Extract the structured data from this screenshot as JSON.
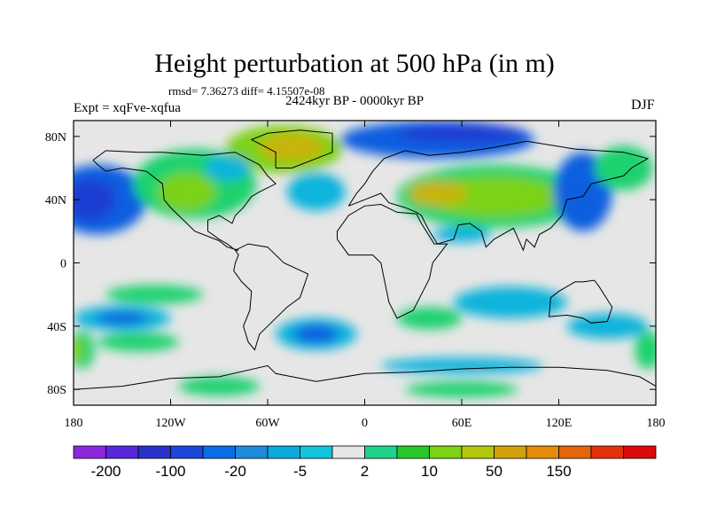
{
  "title": "Height perturbation at 500 hPa (in m)",
  "stats": "rmsd= 7.36273 diff= 4.15507e-08",
  "expt": "Expt = xqFve-xqfua",
  "period": "2424kyr BP - 0000kyr BP",
  "season": "DJF",
  "map": {
    "lon_range": [
      -180,
      180
    ],
    "lat_range": [
      -90,
      90
    ],
    "lon_ticks": [
      {
        "value": -180,
        "label": "180"
      },
      {
        "value": -120,
        "label": "120W"
      },
      {
        "value": -60,
        "label": "60W"
      },
      {
        "value": 0,
        "label": "0"
      },
      {
        "value": 60,
        "label": "60E"
      },
      {
        "value": 120,
        "label": "120E"
      },
      {
        "value": 180,
        "label": "180"
      }
    ],
    "lat_ticks": [
      {
        "value": 80,
        "label": "80N"
      },
      {
        "value": 40,
        "label": "40N"
      },
      {
        "value": 0,
        "label": "0"
      },
      {
        "value": -40,
        "label": "40S"
      },
      {
        "value": -80,
        "label": "80S"
      }
    ],
    "background_color": "#e6e6e6",
    "features": [
      {
        "name": "north-pacific-low",
        "lon": -165,
        "lat": 40,
        "rx": 30,
        "ry": 22,
        "color": "#0a5ee0"
      },
      {
        "name": "north-pacific-low-core",
        "lon": -170,
        "lat": 40,
        "rx": 16,
        "ry": 13,
        "color": "#1e3cd2"
      },
      {
        "name": "north-america-high",
        "lon": -105,
        "lat": 50,
        "rx": 38,
        "ry": 22,
        "color": "#1ed26e"
      },
      {
        "name": "north-america-high-core",
        "lon": -110,
        "lat": 45,
        "rx": 18,
        "ry": 12,
        "color": "#7cd214"
      },
      {
        "name": "greenland-high",
        "lon": -50,
        "lat": 72,
        "rx": 36,
        "ry": 15,
        "color": "#7cd214"
      },
      {
        "name": "greenland-high-core",
        "lon": -45,
        "lat": 73,
        "rx": 20,
        "ry": 9,
        "color": "#c8b40a"
      },
      {
        "name": "hudson-low",
        "lon": -85,
        "lat": 60,
        "rx": 14,
        "ry": 8,
        "color": "#10b4dc"
      },
      {
        "name": "atlantic-low",
        "lon": -30,
        "lat": 45,
        "rx": 18,
        "ry": 12,
        "color": "#10b4dc"
      },
      {
        "name": "arctic-low",
        "lon": 45,
        "lat": 78,
        "rx": 60,
        "ry": 12,
        "color": "#0a5ee0"
      },
      {
        "name": "arctic-low-core",
        "lon": 60,
        "lat": 82,
        "rx": 40,
        "ry": 6,
        "color": "#1e3cd2"
      },
      {
        "name": "eurasia-high",
        "lon": 80,
        "lat": 42,
        "rx": 60,
        "ry": 20,
        "color": "#1ed26e"
      },
      {
        "name": "eurasia-high-core",
        "lon": 80,
        "lat": 42,
        "rx": 42,
        "ry": 13,
        "color": "#7cd214"
      },
      {
        "name": "eurasia-high-peak",
        "lon": 45,
        "lat": 44,
        "rx": 18,
        "ry": 8,
        "color": "#c8b40a"
      },
      {
        "name": "east-asia-low",
        "lon": 135,
        "lat": 45,
        "rx": 18,
        "ry": 25,
        "color": "#0a5ee0"
      },
      {
        "name": "bering-high",
        "lon": 160,
        "lat": 60,
        "rx": 18,
        "ry": 14,
        "color": "#1ed26e"
      },
      {
        "name": "mideast-low",
        "lon": 60,
        "lat": 18,
        "rx": 18,
        "ry": 5,
        "color": "#10b4dc"
      },
      {
        "name": "south-pacific-low",
        "lon": -150,
        "lat": -35,
        "rx": 30,
        "ry": 8,
        "color": "#10b4dc"
      },
      {
        "name": "south-pacific-low-core",
        "lon": -150,
        "lat": -35,
        "rx": 16,
        "ry": 4,
        "color": "#0a5ee0"
      },
      {
        "name": "south-pacific-high",
        "lon": -130,
        "lat": -20,
        "rx": 30,
        "ry": 6,
        "color": "#1ed26e"
      },
      {
        "name": "south-pacific-high-2",
        "lon": -140,
        "lat": -50,
        "rx": 25,
        "ry": 6,
        "color": "#1ed26e"
      },
      {
        "name": "south-atlantic-low",
        "lon": -30,
        "lat": -45,
        "rx": 25,
        "ry": 10,
        "color": "#10b4dc"
      },
      {
        "name": "south-atlantic-low-core",
        "lon": -30,
        "lat": -45,
        "rx": 14,
        "ry": 6,
        "color": "#0a5ee0"
      },
      {
        "name": "south-indian-high",
        "lon": 40,
        "lat": -35,
        "rx": 20,
        "ry": 7,
        "color": "#1ed26e"
      },
      {
        "name": "indian-ocean-low",
        "lon": 90,
        "lat": -25,
        "rx": 35,
        "ry": 10,
        "color": "#10b4dc"
      },
      {
        "name": "australia-low",
        "lon": 150,
        "lat": -40,
        "rx": 25,
        "ry": 8,
        "color": "#10b4dc"
      },
      {
        "name": "southern-ocean-low",
        "lon": 60,
        "lat": -65,
        "rx": 50,
        "ry": 5,
        "color": "#10b4dc"
      },
      {
        "name": "antarctic-high-west",
        "lon": -90,
        "lat": -78,
        "rx": 25,
        "ry": 6,
        "color": "#1ed26e"
      },
      {
        "name": "antarctic-high-east",
        "lon": 60,
        "lat": -80,
        "rx": 35,
        "ry": 5,
        "color": "#1ed26e"
      },
      {
        "name": "dateline-high-south",
        "lon": -175,
        "lat": -55,
        "rx": 8,
        "ry": 12,
        "color": "#1ed26e"
      },
      {
        "name": "dateline-high-south-core",
        "lon": -178,
        "lat": -55,
        "rx": 4,
        "ry": 8,
        "color": "#7cd214"
      },
      {
        "name": "east-dateline-high-south",
        "lon": 175,
        "lat": -55,
        "rx": 8,
        "ry": 12,
        "color": "#1ed26e"
      }
    ],
    "coastlines": [
      [
        [
          -168,
          65
        ],
        [
          -160,
          71
        ],
        [
          -140,
          70
        ],
        [
          -125,
          70
        ],
        [
          -100,
          68
        ],
        [
          -80,
          70
        ],
        [
          -65,
          62
        ],
        [
          -60,
          55
        ],
        [
          -55,
          50
        ],
        [
          -65,
          45
        ],
        [
          -70,
          42
        ],
        [
          -75,
          35
        ],
        [
          -80,
          30
        ],
        [
          -82,
          25
        ],
        [
          -90,
          30
        ],
        [
          -97,
          27
        ],
        [
          -97,
          20
        ],
        [
          -90,
          15
        ],
        [
          -85,
          12
        ],
        [
          -80,
          8
        ],
        [
          -78,
          8
        ],
        [
          -85,
          10
        ],
        [
          -90,
          14
        ],
        [
          -105,
          20
        ],
        [
          -115,
          30
        ],
        [
          -120,
          35
        ],
        [
          -124,
          40
        ],
        [
          -125,
          50
        ],
        [
          -135,
          58
        ],
        [
          -150,
          60
        ],
        [
          -160,
          58
        ],
        [
          -165,
          62
        ],
        [
          -168,
          65
        ]
      ],
      [
        [
          -80,
          8
        ],
        [
          -72,
          12
        ],
        [
          -60,
          10
        ],
        [
          -50,
          0
        ],
        [
          -35,
          -7
        ],
        [
          -40,
          -22
        ],
        [
          -48,
          -28
        ],
        [
          -58,
          -38
        ],
        [
          -65,
          -45
        ],
        [
          -68,
          -55
        ],
        [
          -72,
          -50
        ],
        [
          -75,
          -40
        ],
        [
          -71,
          -30
        ],
        [
          -70,
          -18
        ],
        [
          -76,
          -12
        ],
        [
          -81,
          -5
        ],
        [
          -80,
          0
        ],
        [
          -78,
          5
        ],
        [
          -80,
          8
        ]
      ],
      [
        [
          -55,
          60
        ],
        [
          -45,
          60
        ],
        [
          -20,
          70
        ],
        [
          -20,
          82
        ],
        [
          -40,
          84
        ],
        [
          -60,
          82
        ],
        [
          -70,
          78
        ],
        [
          -55,
          70
        ],
        [
          -55,
          60
        ]
      ],
      [
        [
          -10,
          36
        ],
        [
          -5,
          44
        ],
        [
          0,
          50
        ],
        [
          5,
          58
        ],
        [
          12,
          66
        ],
        [
          25,
          71
        ],
        [
          40,
          68
        ],
        [
          60,
          70
        ],
        [
          80,
          73
        ],
        [
          100,
          77
        ],
        [
          130,
          72
        ],
        [
          160,
          70
        ],
        [
          175,
          66
        ],
        [
          165,
          60
        ],
        [
          160,
          55
        ],
        [
          140,
          50
        ],
        [
          135,
          42
        ],
        [
          125,
          40
        ],
        [
          122,
          30
        ],
        [
          115,
          22
        ],
        [
          108,
          18
        ],
        [
          105,
          10
        ],
        [
          100,
          15
        ],
        [
          98,
          8
        ],
        [
          92,
          22
        ],
        [
          80,
          15
        ],
        [
          75,
          10
        ],
        [
          72,
          20
        ],
        [
          65,
          25
        ],
        [
          58,
          24
        ],
        [
          55,
          15
        ],
        [
          45,
          12
        ],
        [
          40,
          20
        ],
        [
          35,
          30
        ],
        [
          32,
          32
        ],
        [
          25,
          35
        ],
        [
          15,
          38
        ],
        [
          10,
          44
        ],
        [
          0,
          40
        ],
        [
          -10,
          36
        ]
      ],
      [
        [
          -17,
          15
        ],
        [
          -10,
          5
        ],
        [
          5,
          5
        ],
        [
          10,
          0
        ],
        [
          12,
          -10
        ],
        [
          15,
          -25
        ],
        [
          20,
          -35
        ],
        [
          30,
          -30
        ],
        [
          35,
          -20
        ],
        [
          40,
          -10
        ],
        [
          42,
          0
        ],
        [
          51,
          12
        ],
        [
          43,
          12
        ],
        [
          35,
          25
        ],
        [
          32,
          31
        ],
        [
          20,
          32
        ],
        [
          10,
          37
        ],
        [
          0,
          36
        ],
        [
          -10,
          30
        ],
        [
          -17,
          20
        ],
        [
          -17,
          15
        ]
      ],
      [
        [
          115,
          -22
        ],
        [
          114,
          -34
        ],
        [
          125,
          -33
        ],
        [
          135,
          -35
        ],
        [
          140,
          -38
        ],
        [
          150,
          -37
        ],
        [
          153,
          -28
        ],
        [
          145,
          -15
        ],
        [
          142,
          -11
        ],
        [
          135,
          -12
        ],
        [
          130,
          -12
        ],
        [
          120,
          -18
        ],
        [
          115,
          -22
        ]
      ],
      [
        [
          -180,
          -80
        ],
        [
          -150,
          -78
        ],
        [
          -120,
          -73
        ],
        [
          -90,
          -72
        ],
        [
          -60,
          -65
        ],
        [
          -55,
          -70
        ],
        [
          -30,
          -75
        ],
        [
          0,
          -70
        ],
        [
          30,
          -69
        ],
        [
          60,
          -67
        ],
        [
          90,
          -66
        ],
        [
          120,
          -66
        ],
        [
          150,
          -68
        ],
        [
          170,
          -72
        ],
        [
          180,
          -78
        ]
      ]
    ],
    "colorbar": {
      "colors": [
        "#8c28dc",
        "#5a28dc",
        "#2832c8",
        "#1e46dc",
        "#0a6ee6",
        "#1e8cdc",
        "#0aaadc",
        "#10c4dc",
        "#e6e6e6",
        "#1ed28c",
        "#28c828",
        "#7cd214",
        "#b4c80a",
        "#d2a00a",
        "#e68c0a",
        "#e6640a",
        "#e6320a",
        "#dc0a0a"
      ],
      "labels": [
        "-200",
        "-100",
        "-20",
        "-5",
        "2",
        "10",
        "50",
        "150"
      ]
    }
  }
}
